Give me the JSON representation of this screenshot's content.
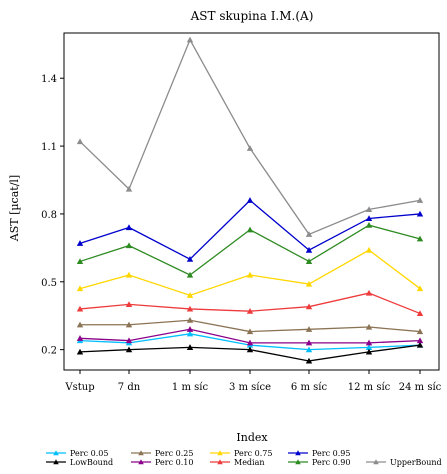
{
  "chart_data": {
    "type": "line",
    "title": "AST skupina I.M.(A)",
    "xlabel": "Index",
    "ylabel": "AST [µcat/l]",
    "categories": [
      "Vstup",
      "7 dn",
      "1 m  síc",
      "3 m  síce",
      "6 m  síc",
      "12 m  síc",
      "24 m  síc"
    ],
    "yticks": [
      "0.2",
      "0.5",
      "0.8",
      "1.1",
      "1.4"
    ],
    "ytick_values": [
      0.2,
      0.5,
      0.8,
      1.1,
      1.4
    ],
    "ylim": [
      0.11,
      1.6
    ],
    "grid": false,
    "legend_position": "bottom",
    "series": [
      {
        "name": "Perc 0.05",
        "color": "#00bfff",
        "marker": "triangle",
        "values": [
          0.24,
          0.23,
          0.27,
          0.22,
          0.2,
          0.21,
          0.22
        ]
      },
      {
        "name": "LowBound",
        "color": "#000000",
        "marker": "triangle",
        "values": [
          0.19,
          0.2,
          0.21,
          0.2,
          0.15,
          0.19,
          0.22
        ]
      },
      {
        "name": "Perc 0.25",
        "color": "#8b7355",
        "marker": "triangle",
        "values": [
          0.31,
          0.31,
          0.33,
          0.28,
          0.29,
          0.3,
          0.28
        ]
      },
      {
        "name": "Perc 0.10",
        "color": "#8b008b",
        "marker": "triangle",
        "values": [
          0.25,
          0.24,
          0.29,
          0.23,
          0.23,
          0.23,
          0.24
        ]
      },
      {
        "name": "Perc 0.75",
        "color": "#ffd700",
        "marker": "triangle",
        "values": [
          0.47,
          0.53,
          0.44,
          0.53,
          0.49,
          0.64,
          0.47
        ]
      },
      {
        "name": "Median",
        "color": "#ee3b3b",
        "marker": "triangle",
        "values": [
          0.38,
          0.4,
          0.38,
          0.37,
          0.39,
          0.45,
          0.36
        ]
      },
      {
        "name": "Perc 0.95",
        "color": "#0000cd",
        "marker": "triangle",
        "values": [
          0.67,
          0.74,
          0.6,
          0.86,
          0.64,
          0.78,
          0.8
        ]
      },
      {
        "name": "Perc 0.90",
        "color": "#2e8b22",
        "marker": "triangle",
        "values": [
          0.59,
          0.66,
          0.53,
          0.73,
          0.59,
          0.75,
          0.69
        ]
      },
      {
        "name": "UpperBound",
        "color": "#8c8c8c",
        "marker": "triangle",
        "values": [
          1.12,
          0.91,
          1.57,
          1.09,
          0.71,
          0.82,
          0.86
        ]
      }
    ]
  }
}
